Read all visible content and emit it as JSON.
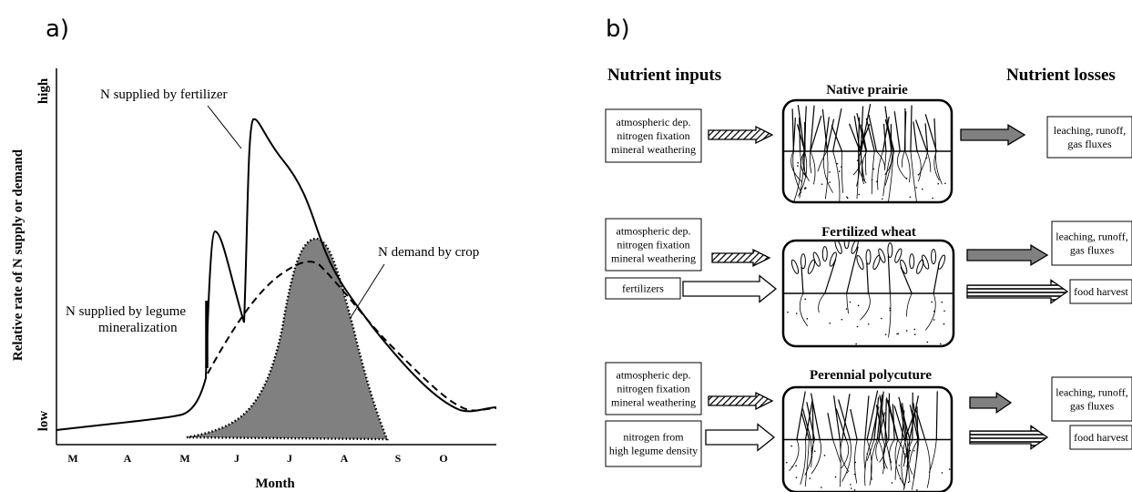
{
  "panel_a": {
    "label": "a)",
    "y_axis_label": "Relative rate of N supply or demand",
    "y_high": "high",
    "y_low": "low",
    "x_axis_label": "Month",
    "months": [
      "M",
      "A",
      "M",
      "J",
      "J",
      "A",
      "S",
      "O"
    ],
    "annotations": {
      "fertilizer": "N supplied by fertilizer",
      "legume": [
        "N supplied by legume",
        "mineralization"
      ],
      "demand": "N demand by crop"
    }
  },
  "panel_b": {
    "label": "b)",
    "inputs_title": "Nutrient inputs",
    "losses_title": "Nutrient losses",
    "rows": [
      {
        "title": "Native prairie",
        "inputs": [
          [
            "atmospheric dep.",
            "nitrogen fixation",
            "mineral weathering"
          ]
        ],
        "losses": [
          [
            "leaching, runoff,",
            "gas fluxes"
          ]
        ]
      },
      {
        "title": "Fertilized wheat",
        "inputs": [
          [
            "atmospheric dep.",
            "nitrogen fixation",
            "mineral weathering"
          ],
          [
            "fertilizers"
          ]
        ],
        "losses": [
          [
            "leaching, runoff,",
            "gas fluxes"
          ],
          [
            "food harvest"
          ]
        ]
      },
      {
        "title": "Perennial polycuture",
        "inputs": [
          [
            "atmospheric dep.",
            "nitrogen fixation",
            "mineral weathering"
          ],
          [
            "nitrogen from",
            "high legume density"
          ]
        ],
        "losses": [
          [
            "leaching, runoff,",
            "gas fluxes"
          ],
          [
            "food harvest"
          ]
        ]
      }
    ]
  }
}
